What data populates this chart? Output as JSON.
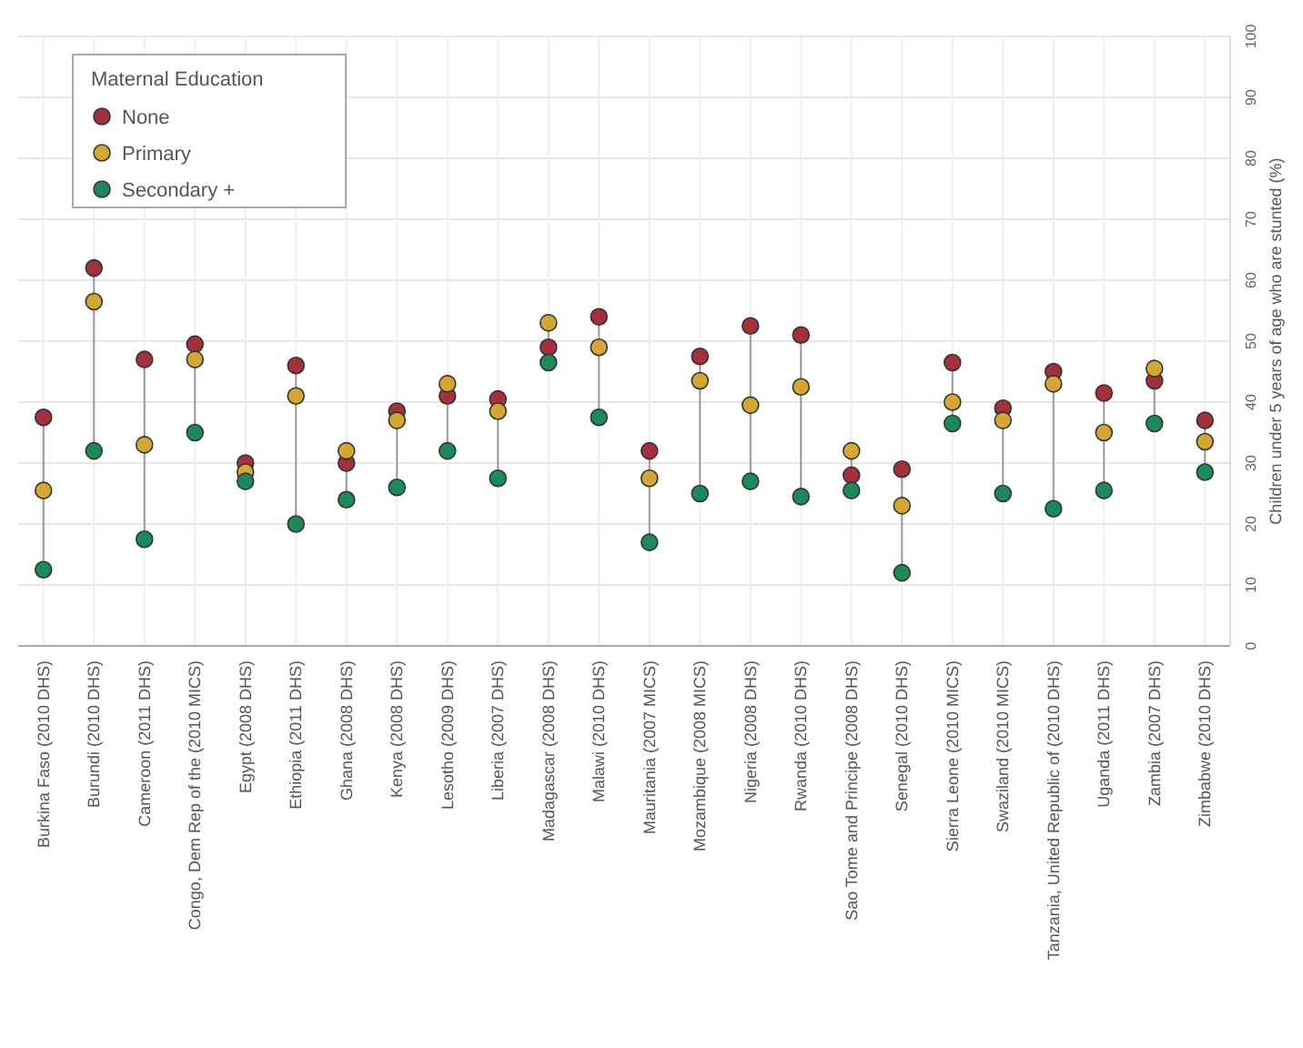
{
  "chart_data": {
    "type": "scatter",
    "ylabel": "Children under 5 years of age who are stunted (%)",
    "legend_title": "Maternal Education",
    "legend": "top left",
    "grid": true,
    "marker": "circle",
    "ylim": [
      0,
      100
    ],
    "yticks": [
      0,
      10,
      20,
      30,
      40,
      50,
      60,
      70,
      80,
      90,
      100
    ],
    "categories": [
      "Burkina Faso (2010 DHS)",
      "Burundi (2010 DHS)",
      "Cameroon (2011 DHS)",
      "Congo, Dem Rep of the (2010 MICS)",
      "Egypt (2008 DHS)",
      "Ethiopia (2011 DHS)",
      "Ghana (2008 DHS)",
      "Kenya (2008 DHS)",
      "Lesotho (2009 DHS)",
      "Liberia (2007 DHS)",
      "Madagascar (2008 DHS)",
      "Malawi (2010 DHS)",
      "Mauritania (2007 MICS)",
      "Mozambique (2008 MICS)",
      "Nigeria (2008 DHS)",
      "Rwanda (2010 DHS)",
      "Sao Tome and Principe (2008 DHS)",
      "Senegal (2010 DHS)",
      "Sierra Leone (2010 MICS)",
      "Swaziland (2010 MICS)",
      "Tanzania, United Republic of (2010 DHS)",
      "Uganda (2011 DHS)",
      "Zambia (2007 DHS)",
      "Zimbabwe (2010 DHS)"
    ],
    "series": [
      {
        "name": "None",
        "color": "#a3303a",
        "values": [
          37.5,
          62,
          47,
          49.5,
          30,
          46,
          30,
          38.5,
          41,
          40.5,
          49,
          54,
          32,
          47.5,
          52.5,
          51,
          28,
          29,
          46.5,
          39,
          45,
          41.5,
          43.5,
          37
        ]
      },
      {
        "name": "Primary",
        "color": "#d4a632",
        "values": [
          25.5,
          56.5,
          33,
          47,
          28.5,
          41,
          32,
          37,
          43,
          38.5,
          53,
          49,
          27.5,
          43.5,
          39.5,
          42.5,
          32,
          23,
          40,
          37,
          43,
          35,
          45.5,
          33.5
        ]
      },
      {
        "name": "Secondary +",
        "color": "#1a8a5a",
        "values": [
          12.5,
          32,
          17.5,
          35,
          27,
          20,
          24,
          26,
          32,
          27.5,
          46.5,
          37.5,
          17,
          25,
          27,
          24.5,
          25.5,
          12,
          36.5,
          25,
          22.5,
          25.5,
          36.5,
          28.5
        ]
      }
    ]
  }
}
